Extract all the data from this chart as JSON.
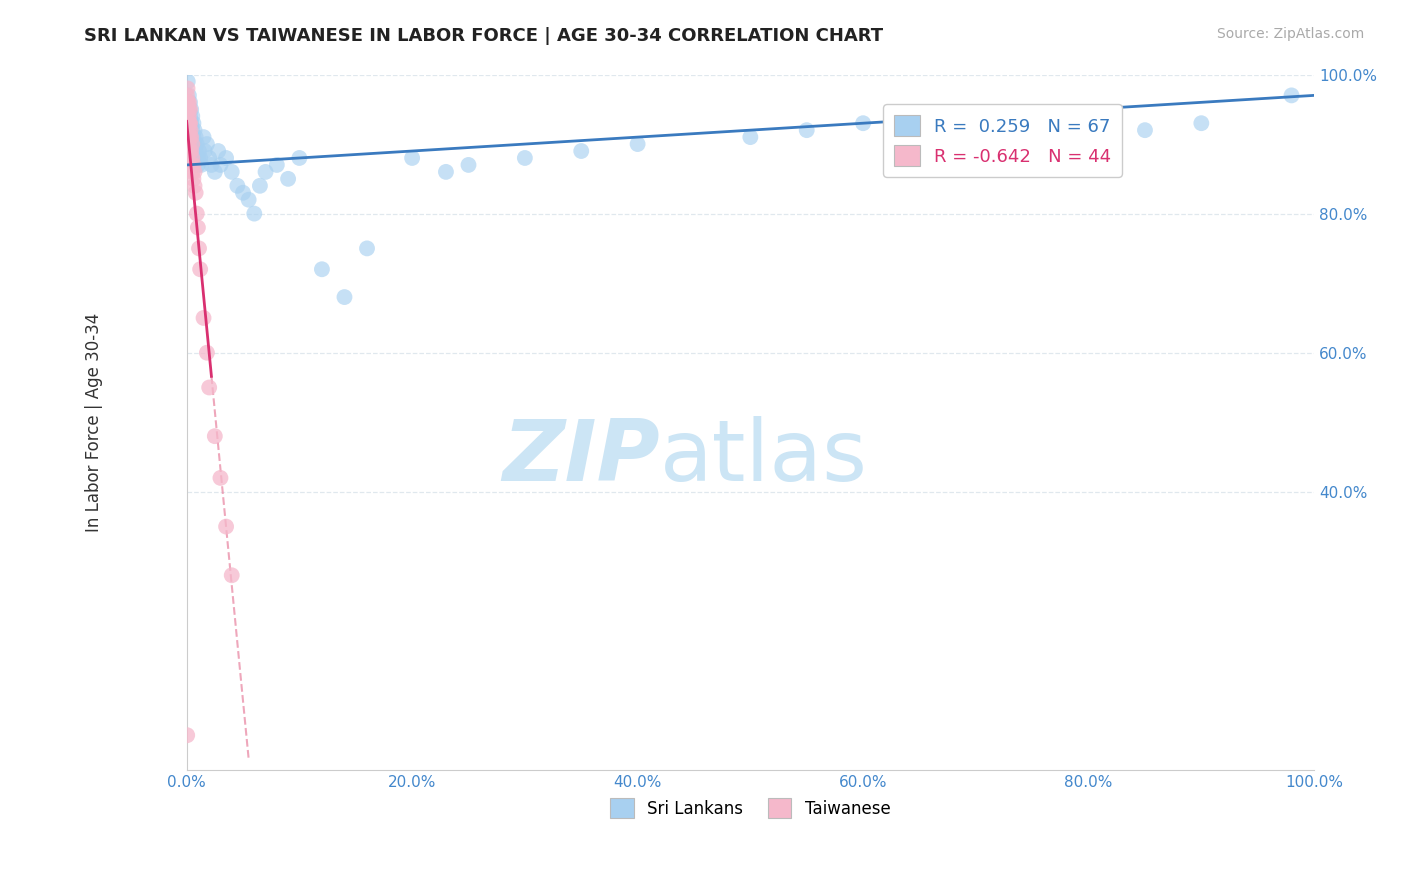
{
  "title": "SRI LANKAN VS TAIWANESE IN LABOR FORCE | AGE 30-34 CORRELATION CHART",
  "source_text": "Source: ZipAtlas.com",
  "ylabel": "In Labor Force | Age 30-34",
  "xlim": [
    0.0,
    1.0
  ],
  "ylim": [
    0.0,
    1.0
  ],
  "xtick_positions": [
    0.0,
    0.2,
    0.4,
    0.6,
    0.8,
    1.0
  ],
  "xtick_labels": [
    "0.0%",
    "20.0%",
    "40.0%",
    "60.0%",
    "80.0%",
    "100.0%"
  ],
  "ytick_positions": [
    0.4,
    0.6,
    0.8,
    1.0
  ],
  "ytick_labels": [
    "40.0%",
    "60.0%",
    "80.0%",
    "100.0%"
  ],
  "sri_lankan_color": "#a8d0f0",
  "taiwanese_color": "#f5b8cb",
  "sri_lankan_trend_color": "#3a7abf",
  "taiwanese_trend_color": "#d93070",
  "taiwanese_trend_dash_color": "#e8829f",
  "watermark_zip": "ZIP",
  "watermark_atlas": "atlas",
  "watermark_color": "#cce5f5",
  "background_color": "#ffffff",
  "grid_color": "#e0e8ee",
  "legend_r_sri": "R =  0.259",
  "legend_n_sri": "N = 67",
  "legend_r_tai": "R = -0.642",
  "legend_n_tai": "N = 44",
  "sri_lankan_x": [
    0.001,
    0.002,
    0.002,
    0.002,
    0.003,
    0.003,
    0.003,
    0.003,
    0.004,
    0.004,
    0.004,
    0.004,
    0.005,
    0.005,
    0.005,
    0.005,
    0.006,
    0.006,
    0.006,
    0.007,
    0.007,
    0.007,
    0.008,
    0.008,
    0.009,
    0.01,
    0.01,
    0.011,
    0.012,
    0.013,
    0.015,
    0.016,
    0.018,
    0.02,
    0.022,
    0.025,
    0.028,
    0.03,
    0.035,
    0.04,
    0.045,
    0.05,
    0.055,
    0.06,
    0.065,
    0.07,
    0.08,
    0.09,
    0.1,
    0.12,
    0.14,
    0.16,
    0.2,
    0.23,
    0.25,
    0.3,
    0.35,
    0.4,
    0.5,
    0.55,
    0.6,
    0.7,
    0.75,
    0.8,
    0.85,
    0.9,
    0.98
  ],
  "sri_lankan_y": [
    0.99,
    0.97,
    0.95,
    0.93,
    0.96,
    0.94,
    0.92,
    0.9,
    0.95,
    0.93,
    0.91,
    0.89,
    0.94,
    0.92,
    0.9,
    0.88,
    0.93,
    0.91,
    0.89,
    0.92,
    0.9,
    0.88,
    0.91,
    0.89,
    0.9,
    0.88,
    0.87,
    0.89,
    0.88,
    0.87,
    0.91,
    0.89,
    0.9,
    0.88,
    0.87,
    0.86,
    0.89,
    0.87,
    0.88,
    0.86,
    0.84,
    0.83,
    0.82,
    0.8,
    0.84,
    0.86,
    0.87,
    0.85,
    0.88,
    0.72,
    0.68,
    0.75,
    0.88,
    0.86,
    0.87,
    0.88,
    0.89,
    0.9,
    0.91,
    0.92,
    0.93,
    0.91,
    0.93,
    0.94,
    0.92,
    0.93,
    0.97
  ],
  "taiwanese_x": [
    0.0003,
    0.0005,
    0.0007,
    0.0008,
    0.001,
    0.001,
    0.001,
    0.001,
    0.0015,
    0.0015,
    0.002,
    0.002,
    0.002,
    0.002,
    0.002,
    0.0025,
    0.003,
    0.003,
    0.003,
    0.003,
    0.0035,
    0.004,
    0.004,
    0.004,
    0.005,
    0.005,
    0.005,
    0.006,
    0.006,
    0.007,
    0.007,
    0.008,
    0.009,
    0.01,
    0.011,
    0.012,
    0.015,
    0.018,
    0.02,
    0.025,
    0.03,
    0.035,
    0.04,
    0.0005
  ],
  "taiwanese_y": [
    0.97,
    0.96,
    0.95,
    0.98,
    0.96,
    0.94,
    0.93,
    0.92,
    0.95,
    0.93,
    0.96,
    0.94,
    0.92,
    0.91,
    0.9,
    0.93,
    0.95,
    0.93,
    0.91,
    0.89,
    0.92,
    0.91,
    0.89,
    0.87,
    0.9,
    0.88,
    0.86,
    0.87,
    0.85,
    0.86,
    0.84,
    0.83,
    0.8,
    0.78,
    0.75,
    0.72,
    0.65,
    0.6,
    0.55,
    0.48,
    0.42,
    0.35,
    0.28,
    0.05
  ]
}
